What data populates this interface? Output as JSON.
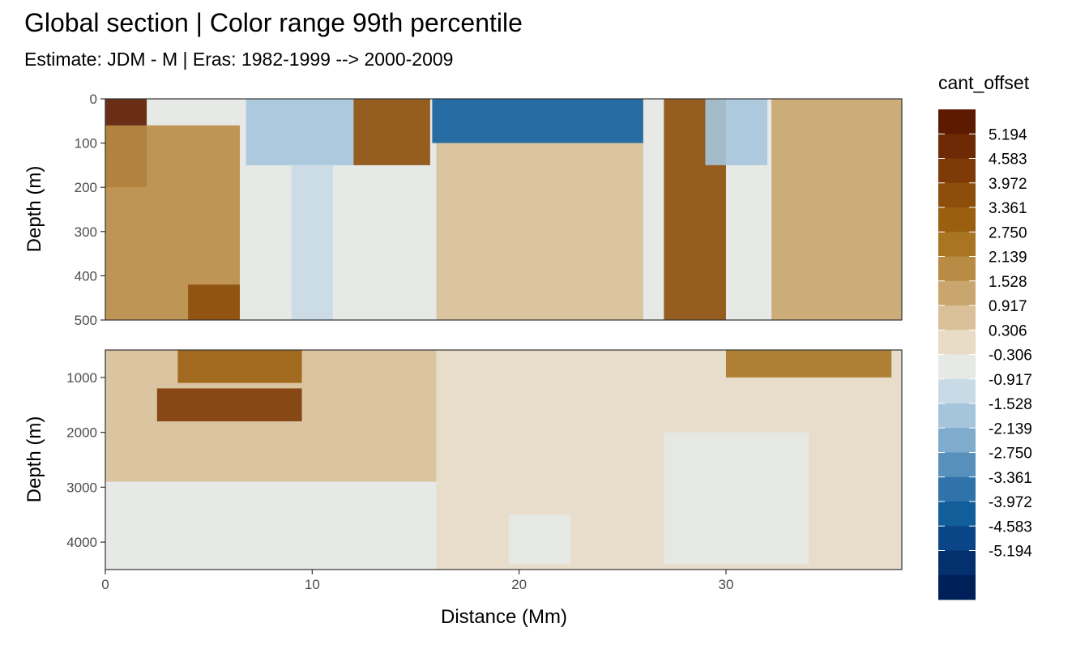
{
  "chart_data": {
    "type": "heatmap",
    "title": "Global section | Color range 99th percentile",
    "subtitle": "Estimate: JDM - M | Eras: 1982-1999 --> 2000-2009",
    "xlabel": "Distance (Mm)",
    "ylabel": "Depth (m)",
    "xlim": [
      0,
      38.5
    ],
    "x_ticks": [
      0,
      10,
      20,
      30
    ],
    "panels": [
      {
        "ylim": [
          0,
          500
        ],
        "y_ticks": [
          0,
          100,
          200,
          300,
          400,
          500
        ],
        "reversed": true,
        "cells": [
          {
            "x0": 0,
            "x1": 2,
            "y0": 0,
            "y1": 200,
            "level": 0
          },
          {
            "x0": 0,
            "x1": 6.5,
            "y0": 60,
            "y1": 500,
            "level": 6
          },
          {
            "x0": 4,
            "x1": 6.5,
            "y0": 420,
            "y1": 500,
            "level": 3
          },
          {
            "x0": 6.8,
            "x1": 12,
            "y0": 0,
            "y1": 150,
            "level": 12
          },
          {
            "x0": 9,
            "x1": 11,
            "y0": 150,
            "y1": 500,
            "level": 11
          },
          {
            "x0": 12,
            "x1": 15.7,
            "y0": 0,
            "y1": 150,
            "level": 3
          },
          {
            "x0": 15.8,
            "x1": 26,
            "y0": 0,
            "y1": 100,
            "level": 16
          },
          {
            "x0": 16,
            "x1": 26,
            "y0": 100,
            "y1": 500,
            "level": 8
          },
          {
            "x0": 27,
            "x1": 30,
            "y0": 0,
            "y1": 500,
            "level": 3
          },
          {
            "x0": 29,
            "x1": 32,
            "y0": 0,
            "y1": 150,
            "level": 12
          },
          {
            "x0": 32.2,
            "x1": 38.5,
            "y0": 0,
            "y1": 500,
            "level": 7
          }
        ]
      },
      {
        "ylim": [
          500,
          4500
        ],
        "y_ticks": [
          1000,
          2000,
          3000,
          4000
        ],
        "reversed": true,
        "cells": [
          {
            "x0": 0,
            "x1": 16,
            "y0": 500,
            "y1": 2900,
            "level": 8
          },
          {
            "x0": 3.5,
            "x1": 9.5,
            "y0": 500,
            "y1": 1100,
            "level": 4
          },
          {
            "x0": 2.5,
            "x1": 9.5,
            "y0": 1200,
            "y1": 1800,
            "level": 2
          },
          {
            "x0": 16,
            "x1": 38.5,
            "y0": 500,
            "y1": 4500,
            "level": 9
          },
          {
            "x0": 19.5,
            "x1": 22.5,
            "y0": 3500,
            "y1": 4400,
            "level": 10
          },
          {
            "x0": 27,
            "x1": 34,
            "y0": 2000,
            "y1": 4400,
            "level": 10
          },
          {
            "x0": 30,
            "x1": 38,
            "y0": 500,
            "y1": 1000,
            "level": 5
          }
        ]
      }
    ],
    "legend": {
      "title": "cant_offset",
      "placement": "right",
      "labels": [
        "5.194",
        "4.583",
        "3.972",
        "3.361",
        "2.750",
        "2.139",
        "1.528",
        "0.917",
        "0.306",
        "-0.306",
        "-0.917",
        "-1.528",
        "-2.139",
        "-2.750",
        "-3.361",
        "-3.972",
        "-4.583",
        "-5.194"
      ],
      "colors": [
        "#5c1a00",
        "#6e2a04",
        "#7e3b07",
        "#8c4e0a",
        "#9a6010",
        "#a97523",
        "#b98c45",
        "#c9a66e",
        "#d9c098",
        "#e8dcc6",
        "#e6e9e5",
        "#c8dae6",
        "#a5c5dc",
        "#7fabcc",
        "#5890bc",
        "#2f73aa",
        "#125e9a",
        "#0a4587",
        "#04306e",
        "#00205a"
      ]
    }
  }
}
